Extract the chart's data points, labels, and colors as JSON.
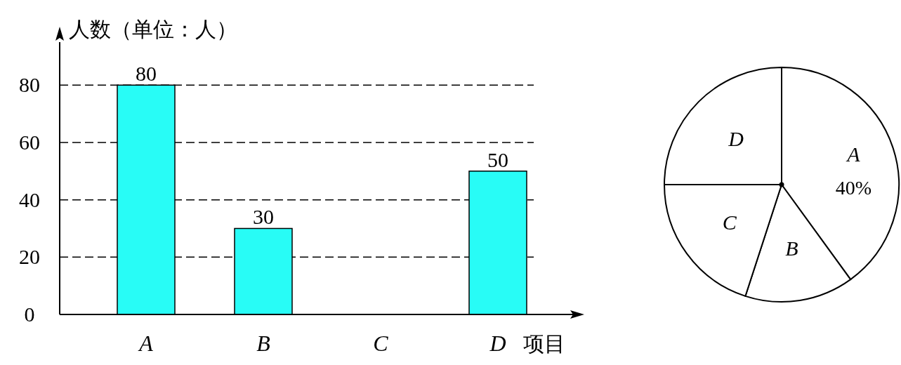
{
  "chart_data": [
    {
      "type": "bar",
      "ylabel": "人数（单位：人）",
      "xlabel": "项目",
      "categories": [
        "A",
        "B",
        "C",
        "D"
      ],
      "values": [
        80,
        30,
        null,
        50
      ],
      "color": "#28fcf6",
      "ylim": [
        0,
        95
      ],
      "yticks": [
        0,
        20,
        40,
        60,
        80
      ],
      "grid": "y",
      "line_style": "dashed",
      "data_labels": true
    },
    {
      "type": "pie",
      "categories": [
        "A",
        "B",
        "C",
        "D"
      ],
      "values": [
        40,
        15,
        20,
        25
      ],
      "colors": [
        "#ffffff",
        "#ffffff",
        "#ffffff",
        "#ffffff"
      ],
      "value_labels": [
        "40%",
        null,
        null,
        null
      ]
    }
  ]
}
